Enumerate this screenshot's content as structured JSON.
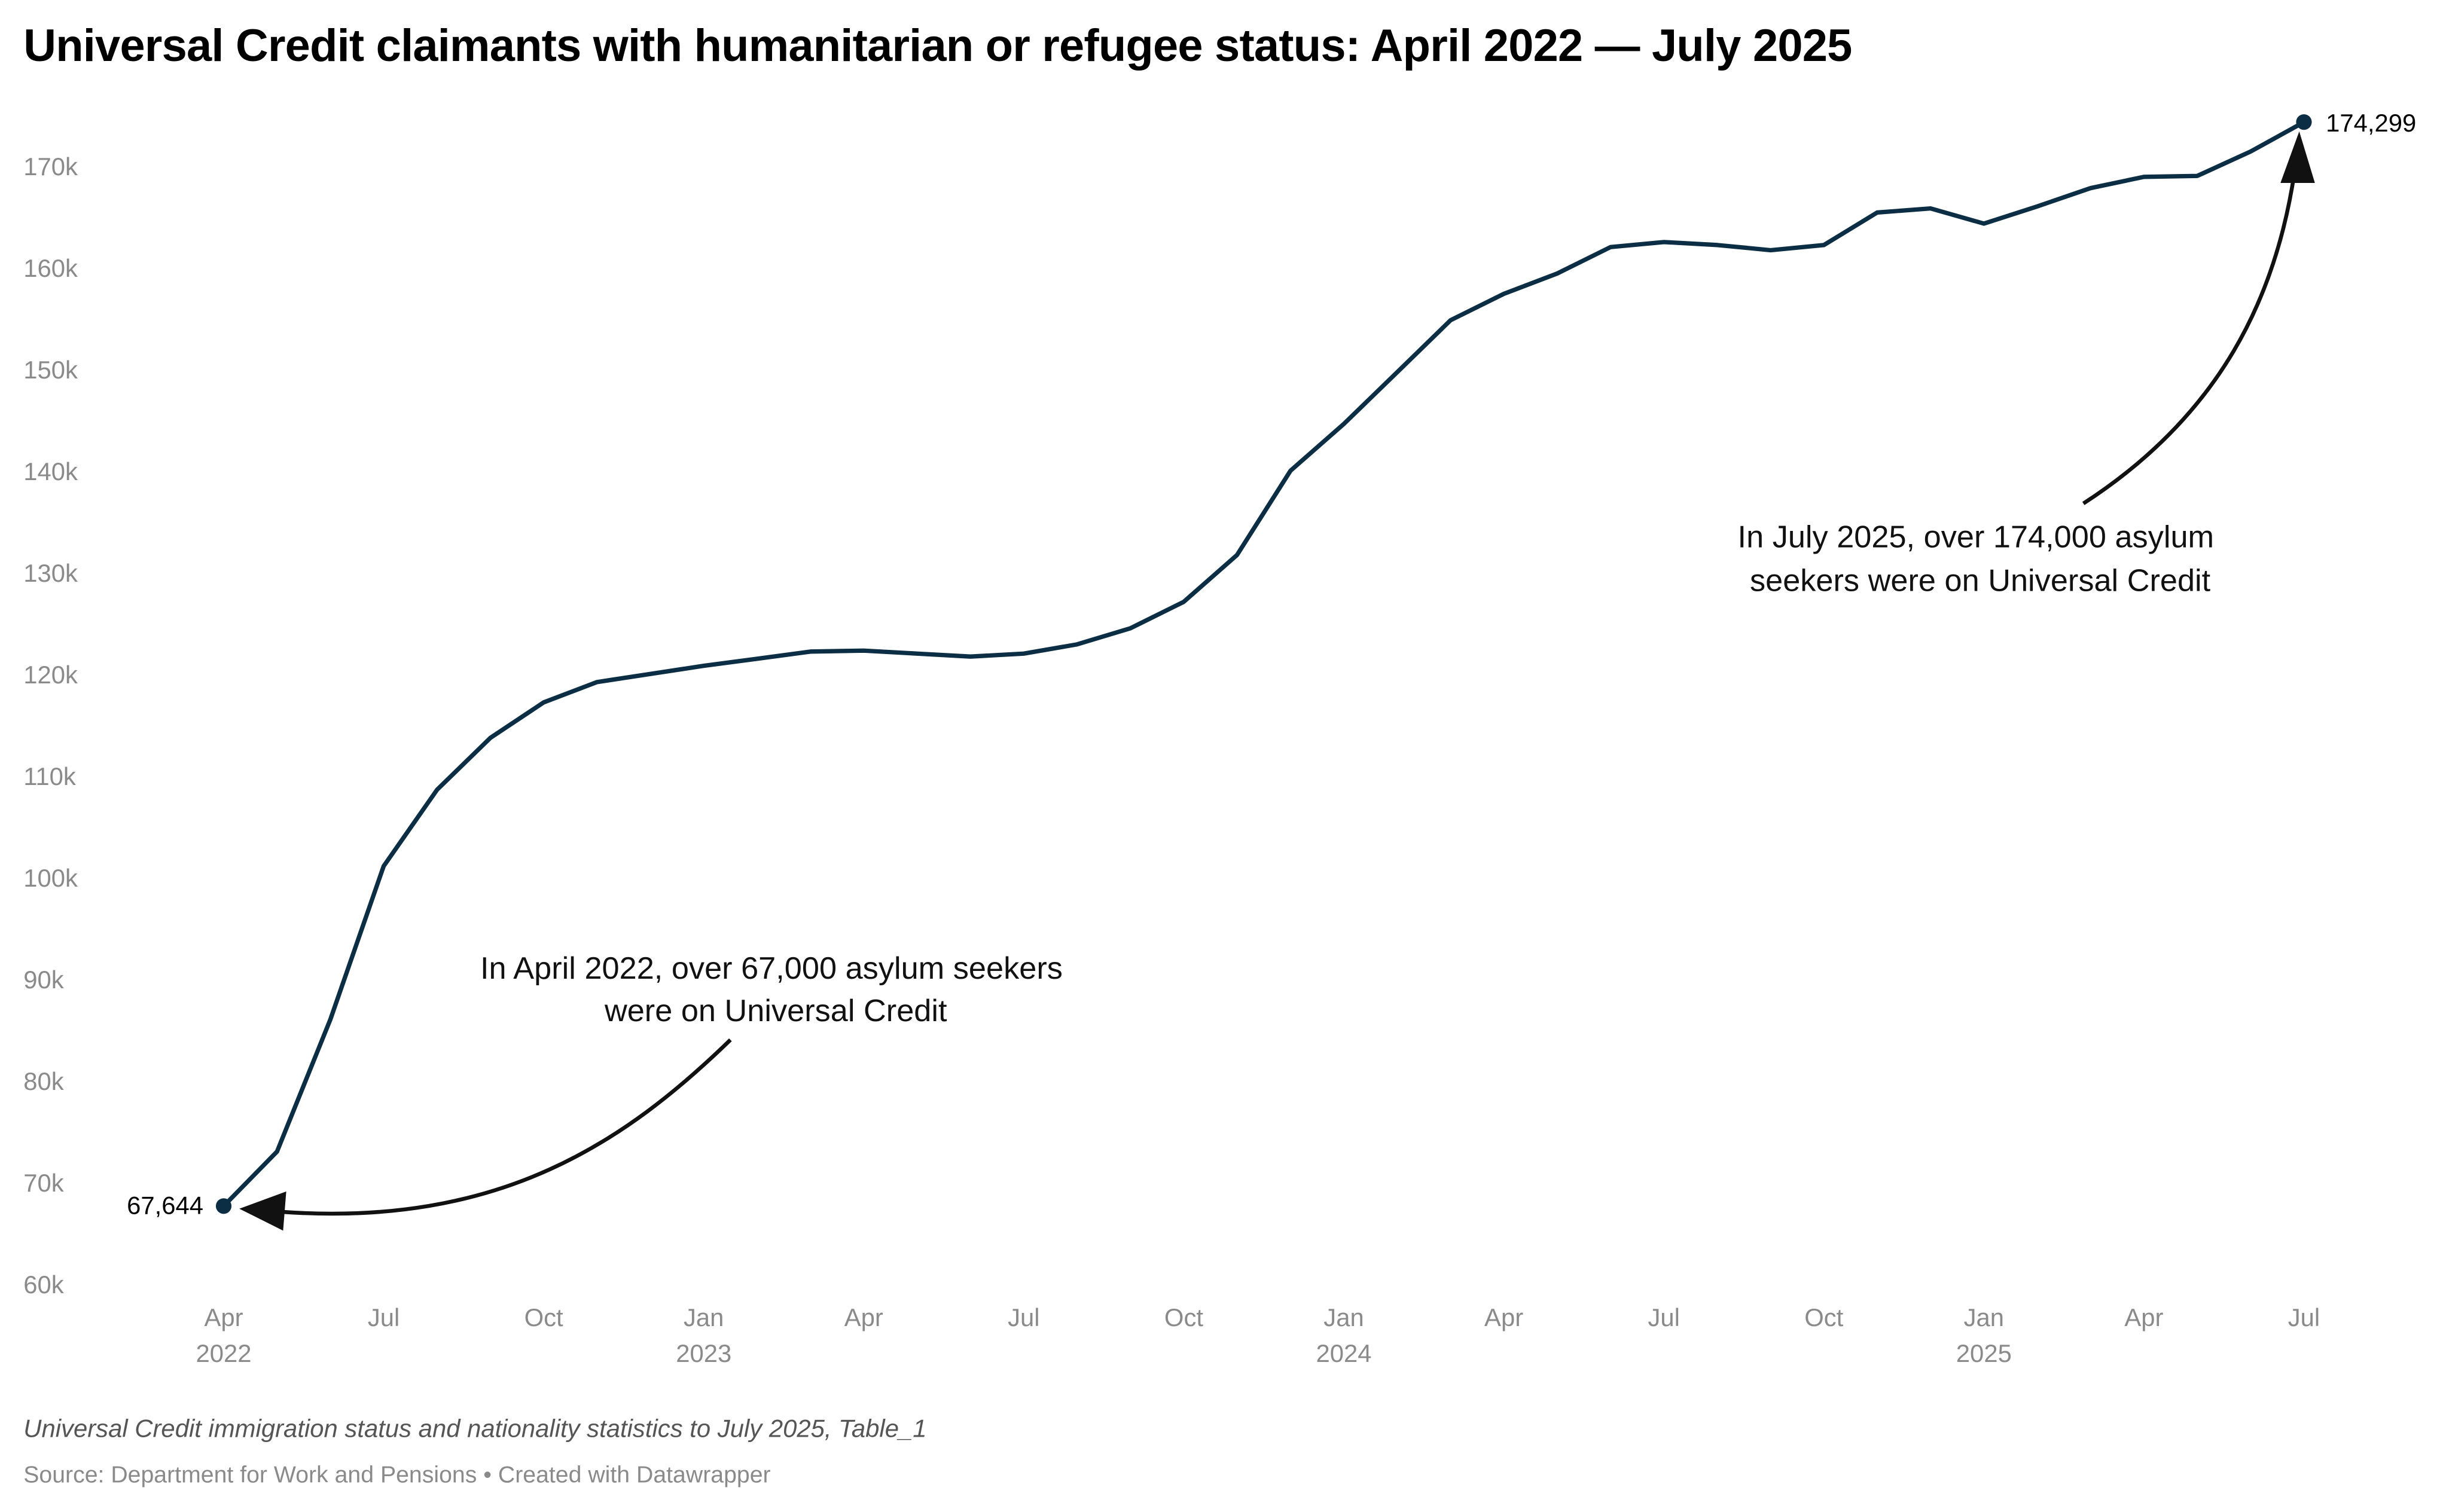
{
  "chart_data": {
    "type": "line",
    "title": "Universal Credit claimants with humanitarian or refugee status: April 2022 — July 2025",
    "xlabel": "",
    "ylabel": "",
    "ylim": [
      60000,
      175000
    ],
    "y_ticks": [
      60000,
      70000,
      80000,
      90000,
      100000,
      110000,
      120000,
      130000,
      140000,
      150000,
      160000,
      170000
    ],
    "y_tick_labels": [
      "60k",
      "70k",
      "80k",
      "90k",
      "100k",
      "110k",
      "120k",
      "130k",
      "140k",
      "150k",
      "160k",
      "170k"
    ],
    "x_ticks": [
      {
        "month_index": 0,
        "label": "Apr",
        "year": "2022"
      },
      {
        "month_index": 3,
        "label": "Jul",
        "year": ""
      },
      {
        "month_index": 6,
        "label": "Oct",
        "year": ""
      },
      {
        "month_index": 9,
        "label": "Jan",
        "year": "2023"
      },
      {
        "month_index": 12,
        "label": "Apr",
        "year": ""
      },
      {
        "month_index": 15,
        "label": "Jul",
        "year": ""
      },
      {
        "month_index": 18,
        "label": "Oct",
        "year": ""
      },
      {
        "month_index": 21,
        "label": "Jan",
        "year": "2024"
      },
      {
        "month_index": 24,
        "label": "Apr",
        "year": ""
      },
      {
        "month_index": 27,
        "label": "Jul",
        "year": ""
      },
      {
        "month_index": 30,
        "label": "Oct",
        "year": ""
      },
      {
        "month_index": 33,
        "label": "Jan",
        "year": "2025"
      },
      {
        "month_index": 36,
        "label": "Apr",
        "year": ""
      },
      {
        "month_index": 39,
        "label": "Jul",
        "year": ""
      }
    ],
    "series": [
      {
        "name": "Claimants",
        "color": "#0b2e44",
        "start": "2022-04",
        "values": [
          67644,
          73000,
          86000,
          101100,
          108600,
          113700,
          117200,
          119200,
          120000,
          120800,
          121500,
          122200,
          122300,
          122000,
          121700,
          122000,
          122900,
          124500,
          127100,
          131700,
          140000,
          144600,
          149700,
          154800,
          157400,
          159400,
          162000,
          162500,
          162200,
          161700,
          162200,
          165400,
          165800,
          164300,
          166000,
          167800,
          168900,
          169000,
          171400,
          174299
        ]
      }
    ],
    "point_labels": {
      "first": "67,644",
      "last": "174,299"
    },
    "annotations": [
      {
        "text_lines": [
          "In April 2022, over 67,000 asylum seekers",
          "were on Universal Credit"
        ]
      },
      {
        "text_lines": [
          "In July 2025, over 174,000 asylum",
          "seekers were on Universal Credit"
        ]
      }
    ]
  },
  "notes": "Universal Credit immigration status and nationality statistics to July 2025, Table_1",
  "source": "Source: Department for Work and Pensions • Created with Datawrapper"
}
